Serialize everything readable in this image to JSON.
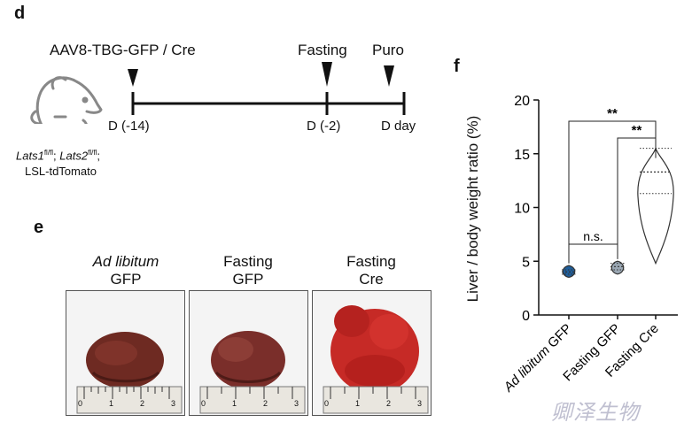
{
  "panel_d": {
    "letter": "d",
    "injection": "AAV8-TBG-GFP / Cre",
    "fasting": "Fasting",
    "puro": "Puro",
    "day_start": "D (-14)",
    "day_mid": "D (-2)",
    "day_end": "D day",
    "genotype_line1_a": "Lats1",
    "genotype_line1_a_sup": "fl/fl",
    "genotype_line1_sep": "; ",
    "genotype_line1_b": "Lats2",
    "genotype_line1_b_sup": "fl/fl",
    "genotype_line1_end": ";",
    "genotype_line2": "LSL-tdTomato",
    "mouse_icon": "mouse-icon"
  },
  "panel_e": {
    "letter": "e",
    "groups": [
      {
        "line1": "Ad libitum",
        "line2": "GFP",
        "italic": true
      },
      {
        "line1": "Fasting",
        "line2": "GFP",
        "italic": false
      },
      {
        "line1": "Fasting",
        "line2": "Cre",
        "italic": false
      }
    ],
    "ruler_ticks": [
      "0",
      "1",
      "2",
      "3"
    ],
    "colors": {
      "liver_brown": "#6e2a22",
      "liver_red": "#c62a26"
    }
  },
  "panel_f": {
    "letter": "f"
  },
  "chart_data": {
    "type": "violin",
    "ylabel": "Liver / body weight ratio (%)",
    "ylim": [
      0,
      20
    ],
    "yticks": [
      0,
      5,
      10,
      15,
      20
    ],
    "categories": [
      "Ad libitum GFP",
      "Fasting GFP",
      "Fasting Cre"
    ],
    "category_label_parts": [
      {
        "italic": "Ad libitum",
        "rest": " GFP"
      },
      {
        "italic": "",
        "rest": "Fasting GFP"
      },
      {
        "italic": "",
        "rest": "Fasting Cre"
      }
    ],
    "violins": [
      {
        "name": "Ad libitum GFP",
        "min": 3.5,
        "max": 4.6,
        "median": 4.0,
        "q1": 3.8,
        "q3": 4.2,
        "color": "#1f5d99"
      },
      {
        "name": "Fasting GFP",
        "min": 3.8,
        "max": 5.0,
        "median": 4.5,
        "q1": 4.2,
        "q3": 4.8,
        "color": "#9aa7b3"
      },
      {
        "name": "Fasting Cre",
        "min": 4.8,
        "max": 15.5,
        "median": 13.3,
        "q1": 11.3,
        "q3": 15.5,
        "color": "#ffffff"
      }
    ],
    "significance": [
      {
        "from": 0,
        "to": 2,
        "label": "**"
      },
      {
        "from": 1,
        "to": 2,
        "label": "**"
      },
      {
        "from": 0,
        "to": 1,
        "label": "n.s."
      }
    ]
  },
  "watermark": "卿泽生物"
}
